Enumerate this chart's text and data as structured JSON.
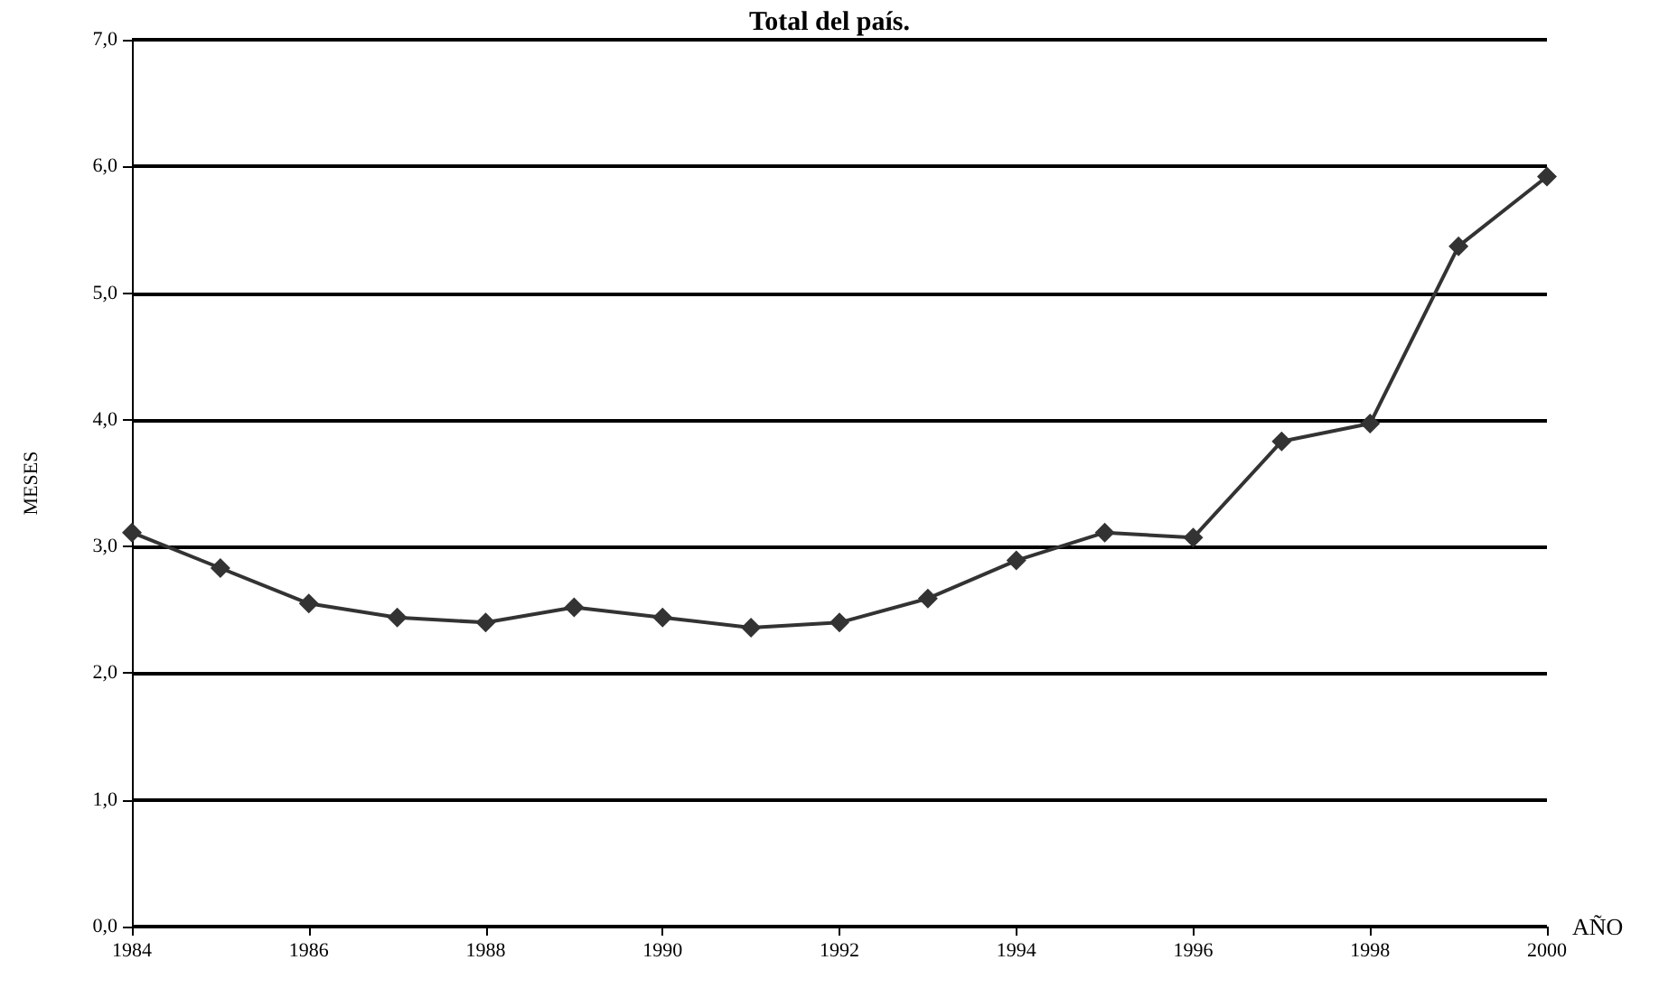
{
  "chart_data": {
    "type": "line",
    "title": "Total del país.",
    "xlabel": "AÑO",
    "ylabel": "MESES",
    "x": [
      1984,
      1985,
      1986,
      1987,
      1988,
      1989,
      1990,
      1991,
      1992,
      1993,
      1994,
      1995,
      1996,
      1997,
      1998,
      1999,
      2000
    ],
    "series": [
      {
        "color": "#333333",
        "values": [
          3.11,
          2.83,
          2.55,
          2.44,
          2.4,
          2.52,
          2.44,
          2.36,
          2.4,
          2.59,
          2.89,
          3.11,
          3.07,
          3.83,
          3.97,
          5.37,
          5.92
        ]
      }
    ],
    "xlim": [
      1984,
      2000
    ],
    "xticks": [
      1984,
      1986,
      1988,
      1990,
      1992,
      1994,
      1996,
      1998,
      2000
    ],
    "ylim": [
      0,
      7
    ],
    "yticks": [
      {
        "value": 0,
        "label": "0,0"
      },
      {
        "value": 1,
        "label": "1,0"
      },
      {
        "value": 2,
        "label": "2,0"
      },
      {
        "value": 3,
        "label": "3,0"
      },
      {
        "value": 4,
        "label": "4,0"
      },
      {
        "value": 5,
        "label": "5,0"
      },
      {
        "value": 6,
        "label": "6,0"
      },
      {
        "value": 7,
        "label": "7,0"
      }
    ],
    "grid": "y",
    "marker": "diamond",
    "line_style": "solid"
  }
}
